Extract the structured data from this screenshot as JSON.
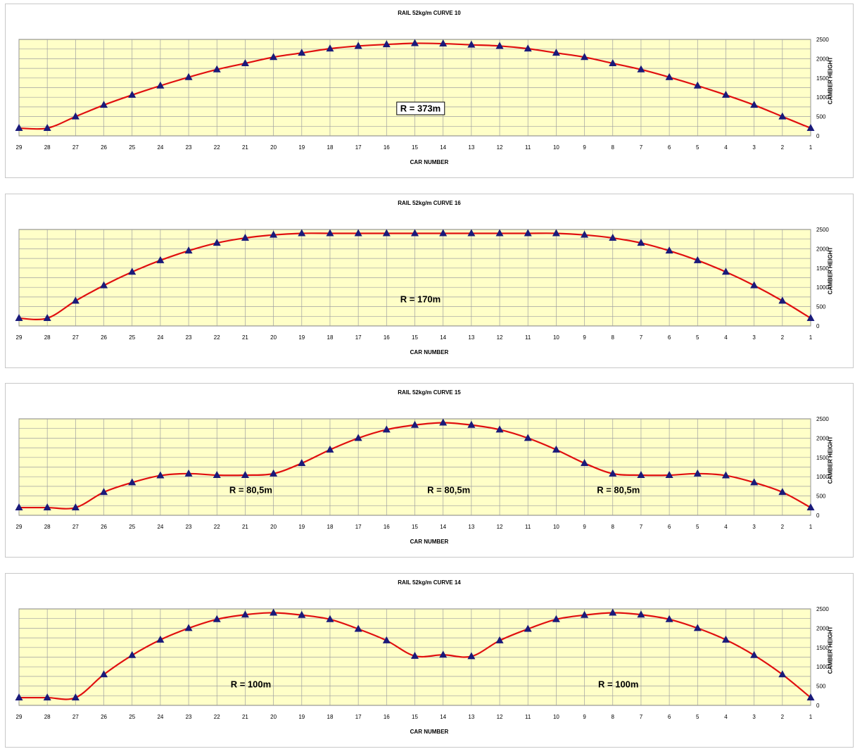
{
  "chart_data": [
    {
      "type": "line",
      "title": "RAIL 52kg/m CURVE 10",
      "xlabel": "CAR NUMBER",
      "ylabel": "CAMBER HEIGHT",
      "categories": [
        "29",
        "28",
        "27",
        "26",
        "25",
        "24",
        "23",
        "22",
        "21",
        "20",
        "19",
        "18",
        "17",
        "16",
        "15",
        "14",
        "13",
        "12",
        "11",
        "10",
        "9",
        "8",
        "7",
        "6",
        "5",
        "4",
        "3",
        "2",
        "1"
      ],
      "values": [
        200,
        200,
        500,
        800,
        1060,
        1300,
        1520,
        1720,
        1880,
        2040,
        2150,
        2260,
        2330,
        2370,
        2400,
        2390,
        2360,
        2330,
        2260,
        2150,
        2040,
        1880,
        1720,
        1520,
        1300,
        1060,
        800,
        500,
        200
      ],
      "ylim": [
        0,
        2500
      ],
      "yticks": [
        "0",
        "500",
        "1000",
        "1500",
        "2000",
        "2500"
      ],
      "grid": true,
      "annotations": [
        {
          "text": "R = 373m",
          "xcat": "15",
          "y": 720,
          "boxed": true
        }
      ]
    },
    {
      "type": "line",
      "title": "RAIL 52kg/m CURVE 16",
      "xlabel": "CAR NUMBER",
      "ylabel": "CAMBER HEIGHT",
      "categories": [
        "29",
        "28",
        "27",
        "26",
        "25",
        "24",
        "23",
        "22",
        "21",
        "20",
        "19",
        "18",
        "17",
        "16",
        "15",
        "14",
        "13",
        "12",
        "11",
        "10",
        "9",
        "8",
        "7",
        "6",
        "5",
        "4",
        "3",
        "2",
        "1"
      ],
      "values": [
        200,
        200,
        650,
        1050,
        1400,
        1700,
        1950,
        2150,
        2280,
        2360,
        2400,
        2400,
        2400,
        2400,
        2400,
        2400,
        2400,
        2400,
        2400,
        2400,
        2360,
        2280,
        2150,
        1950,
        1700,
        1400,
        1050,
        650,
        200
      ],
      "ylim": [
        0,
        2500
      ],
      "yticks": [
        "0",
        "500",
        "1000",
        "1500",
        "2000",
        "2500"
      ],
      "grid": true,
      "annotations": [
        {
          "text": "R = 170m",
          "xcat": "15",
          "y": 700,
          "boxed": false
        }
      ]
    },
    {
      "type": "line",
      "title": "RAIL 52kg/m CURVE 15",
      "xlabel": "CAR NUMBER",
      "ylabel": "CAMBER HEIGHT",
      "categories": [
        "29",
        "28",
        "27",
        "26",
        "25",
        "24",
        "23",
        "22",
        "21",
        "20",
        "19",
        "18",
        "17",
        "16",
        "15",
        "14",
        "13",
        "12",
        "11",
        "10",
        "9",
        "8",
        "7",
        "6",
        "5",
        "4",
        "3",
        "2",
        "1"
      ],
      "values": [
        200,
        200,
        200,
        600,
        850,
        1030,
        1080,
        1040,
        1040,
        1080,
        1350,
        1700,
        2000,
        2220,
        2340,
        2400,
        2340,
        2220,
        2000,
        1700,
        1350,
        1080,
        1040,
        1040,
        1080,
        1030,
        850,
        600,
        200
      ],
      "ylim": [
        0,
        2500
      ],
      "yticks": [
        "0",
        "500",
        "1000",
        "1500",
        "2000",
        "2500"
      ],
      "grid": true,
      "annotations": [
        {
          "text": "R = 80,5m",
          "xcat": "21",
          "y": 650,
          "boxed": false
        },
        {
          "text": "R = 80,5m",
          "xcat": "14",
          "y": 650,
          "boxed": false
        },
        {
          "text": "R = 80,5m",
          "xcat": "8",
          "y": 650,
          "boxed": false
        }
      ]
    },
    {
      "type": "line",
      "title": "RAIL 52kg/m CURVE 14",
      "xlabel": "CAR NUMBER",
      "ylabel": "CAMBER HEIGHT",
      "categories": [
        "29",
        "28",
        "27",
        "26",
        "25",
        "24",
        "23",
        "22",
        "21",
        "20",
        "19",
        "18",
        "17",
        "16",
        "15",
        "14",
        "13",
        "12",
        "11",
        "10",
        "9",
        "8",
        "7",
        "6",
        "5",
        "4",
        "3",
        "2",
        "1"
      ],
      "values": [
        200,
        200,
        200,
        800,
        1300,
        1700,
        2000,
        2230,
        2350,
        2400,
        2340,
        2230,
        1980,
        1680,
        1280,
        1310,
        1270,
        1680,
        1980,
        2230,
        2340,
        2400,
        2350,
        2230,
        2000,
        1700,
        1300,
        800,
        200
      ],
      "ylim": [
        0,
        2500
      ],
      "yticks": [
        "0",
        "500",
        "1000",
        "1500",
        "2000",
        "2500"
      ],
      "grid": true,
      "annotations": [
        {
          "text": "R = 100m",
          "xcat": "21",
          "y": 550,
          "boxed": false
        },
        {
          "text": "R = 100m",
          "xcat": "8",
          "y": 550,
          "boxed": false
        }
      ]
    }
  ],
  "colors": {
    "plot_background": "#ffffc8",
    "grid": "#a0a0a0",
    "line": "#e01010",
    "marker": "#1a1a7a"
  }
}
